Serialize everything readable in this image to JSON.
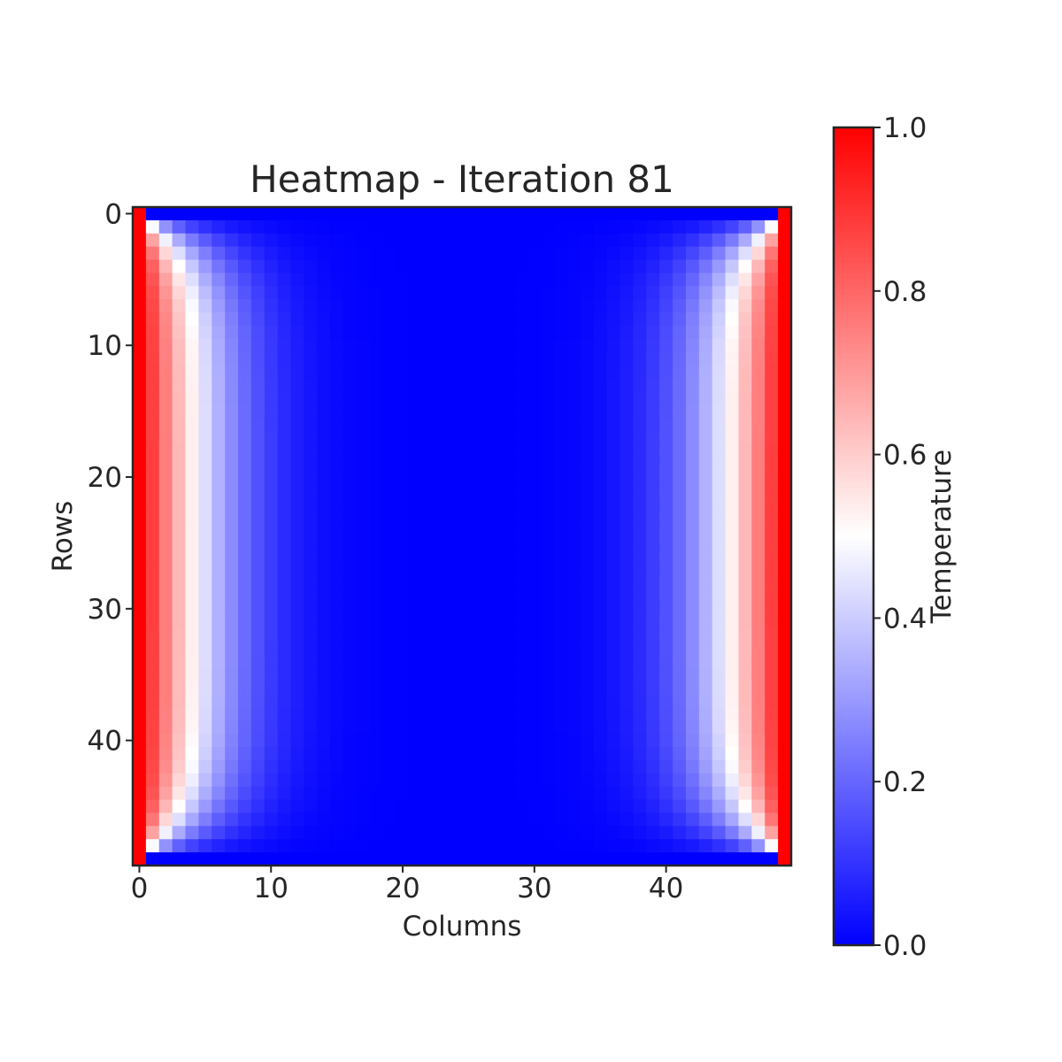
{
  "chart_data": {
    "type": "heatmap",
    "title": "Heatmap - Iteration 81",
    "xlabel": "Columns",
    "ylabel": "Rows",
    "colorbar_label": "Temperature",
    "rows": 50,
    "cols": 50,
    "x_ticks": [
      "0",
      "10",
      "20",
      "30",
      "40"
    ],
    "x_tick_values": [
      0,
      10,
      20,
      30,
      40
    ],
    "y_ticks": [
      "0",
      "10",
      "20",
      "30",
      "40"
    ],
    "y_tick_values": [
      0,
      10,
      20,
      30,
      40
    ],
    "colorbar_ticks": [
      "0.0",
      "0.2",
      "0.4",
      "0.6",
      "0.8",
      "1.0"
    ],
    "colorbar_tick_values": [
      0.0,
      0.2,
      0.4,
      0.6,
      0.8,
      1.0
    ],
    "vmin": 0.0,
    "vmax": 1.0,
    "colormap": "bwr",
    "colormap_colors": {
      "low": "#0000ff",
      "mid": "#ffffff",
      "high": "#ff0000"
    },
    "boundary_conditions": {
      "left": 1.0,
      "right": 1.0,
      "top": 0.0,
      "bottom": 0.0
    },
    "iteration": 81
  }
}
